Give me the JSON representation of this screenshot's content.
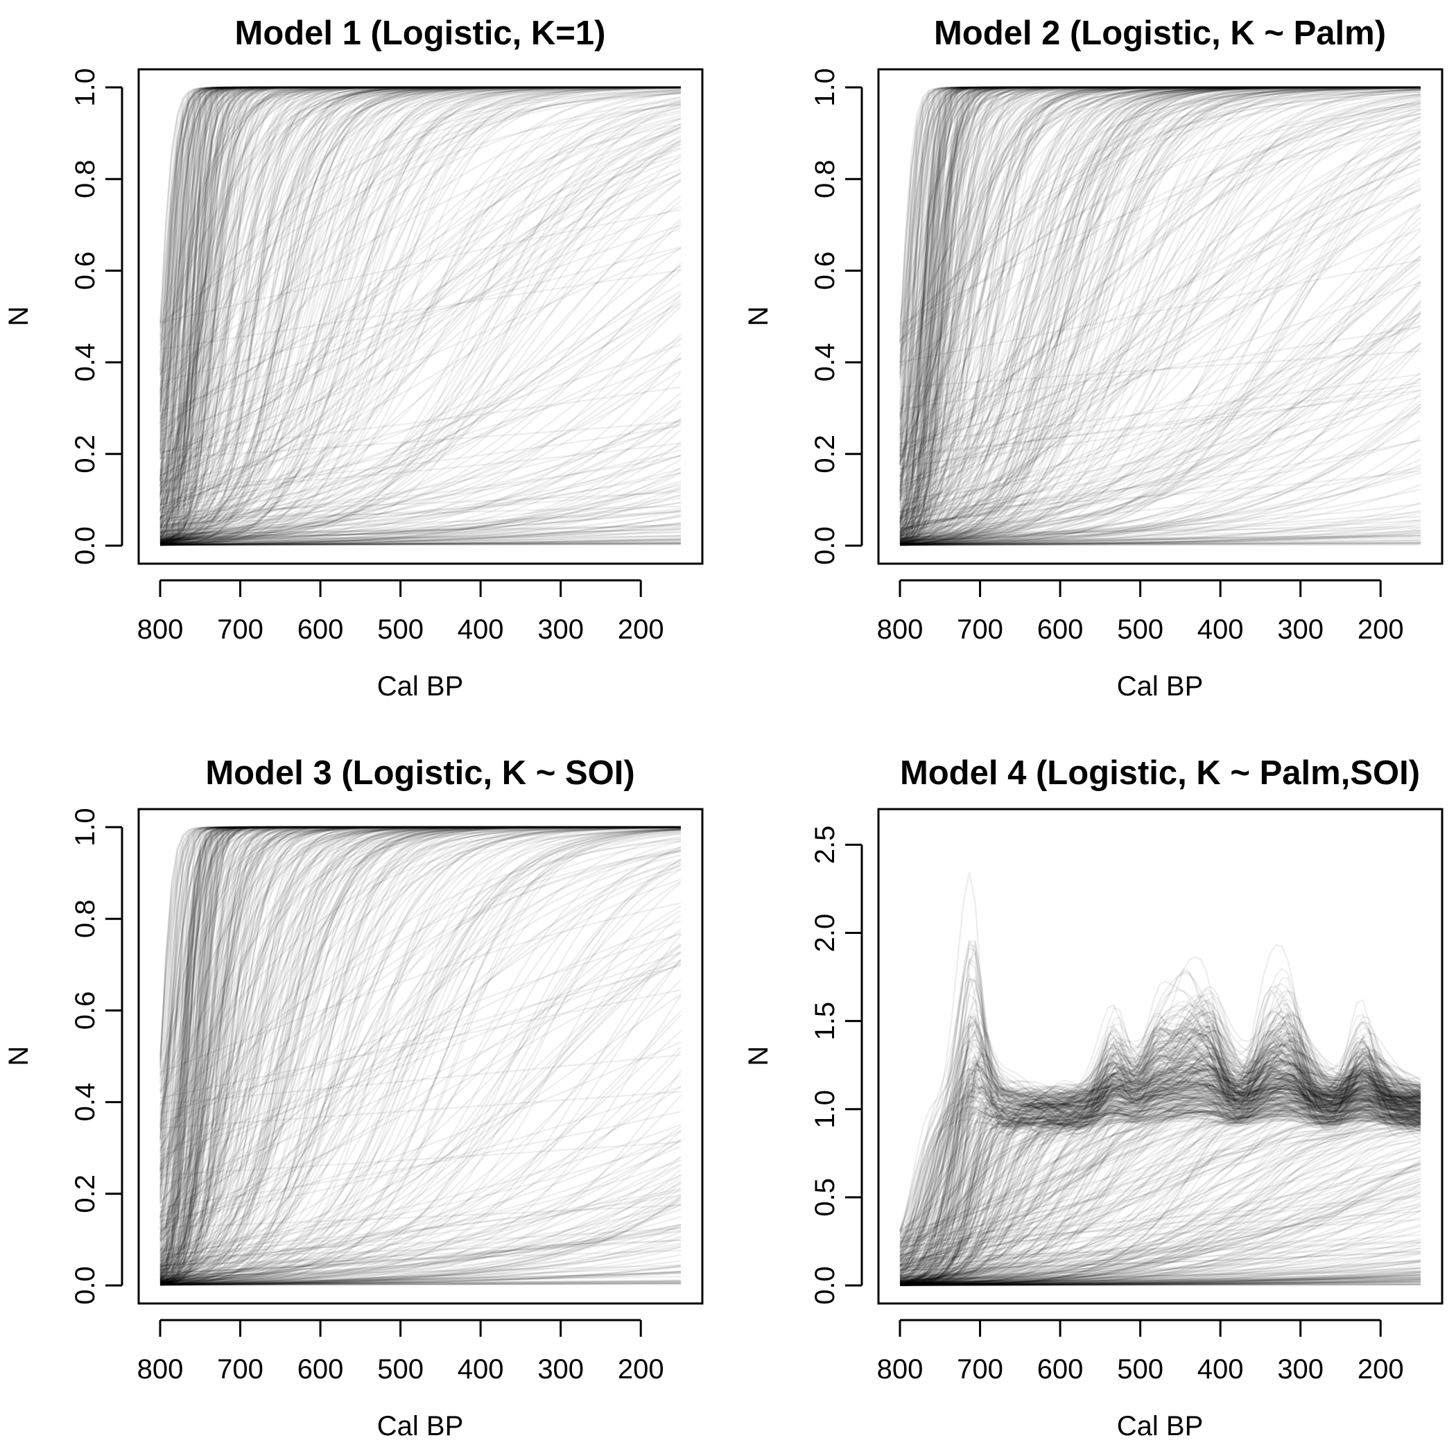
{
  "figure": {
    "background": "#ffffff",
    "line_color": "#000000",
    "line_alpha": 0.07
  },
  "chart_data": [
    {
      "type": "line",
      "title": "Model 1 (Logistic, K=1)",
      "xlabel": "Cal BP",
      "ylabel": "N",
      "xlim": [
        800,
        150
      ],
      "ylim": [
        0,
        1
      ],
      "x_reversed": true,
      "xticks": [
        800,
        700,
        600,
        500,
        400,
        300,
        200
      ],
      "yticks": [
        0.0,
        0.2,
        0.4,
        0.6,
        0.8,
        1.0
      ],
      "ytick_labels": [
        "0.0",
        "0.2",
        "0.4",
        "0.6",
        "0.8",
        "1.0"
      ],
      "grid": false,
      "legend": "none",
      "model": "logistic",
      "n_curves": 500,
      "x_range": [
        800,
        150
      ],
      "curve_summary": "Posterior predictive logistic growth trajectories with carrying capacity fixed at 1; N starts near 0 around 800 Cal BP; most curves saturate at 1.0 by ~700 Cal BP, others rise slowly and end between 0 and 1 at 150 Cal BP"
    },
    {
      "type": "line",
      "title": "Model 2 (Logistic, K ~ Palm)",
      "xlabel": "Cal BP",
      "ylabel": "N",
      "xlim": [
        800,
        150
      ],
      "ylim": [
        0,
        1
      ],
      "x_reversed": true,
      "xticks": [
        800,
        700,
        600,
        500,
        400,
        300,
        200
      ],
      "yticks": [
        0.0,
        0.2,
        0.4,
        0.6,
        0.8,
        1.0
      ],
      "ytick_labels": [
        "0.0",
        "0.2",
        "0.4",
        "0.6",
        "0.8",
        "1.0"
      ],
      "grid": false,
      "legend": "none",
      "model": "logistic",
      "n_curves": 500,
      "x_range": [
        800,
        150
      ],
      "curve_summary": "Posterior predictive logistic trajectories with K modelled by Palm; very similar to Model 1: rapid saturation at 1.0 for most draws, slower rising draws fanning across the panel"
    },
    {
      "type": "line",
      "title": "Model 3 (Logistic, K ~ SOI)",
      "xlabel": "Cal BP",
      "ylabel": "N",
      "xlim": [
        800,
        150
      ],
      "ylim": [
        0,
        1
      ],
      "x_reversed": true,
      "xticks": [
        800,
        700,
        600,
        500,
        400,
        300,
        200
      ],
      "yticks": [
        0.0,
        0.2,
        0.4,
        0.6,
        0.8,
        1.0
      ],
      "ytick_labels": [
        "0.0",
        "0.2",
        "0.4",
        "0.6",
        "0.8",
        "1.0"
      ],
      "grid": false,
      "legend": "none",
      "model": "logistic",
      "n_curves": 500,
      "x_range": [
        800,
        150
      ],
      "curve_summary": "Posterior predictive logistic trajectories with K modelled by SOI; dense band saturating at 1.0 early, fainter slow-growth curves spread between 0 and 1"
    },
    {
      "type": "line",
      "title": "Model 4 (Logistic, K ~ Palm,SOI)",
      "xlabel": "Cal BP",
      "ylabel": "N",
      "xlim": [
        800,
        150
      ],
      "ylim": [
        0,
        2.6
      ],
      "x_reversed": true,
      "xticks": [
        800,
        700,
        600,
        500,
        400,
        300,
        200
      ],
      "yticks": [
        0.0,
        0.5,
        1.0,
        1.5,
        2.0,
        2.5
      ],
      "ytick_labels": [
        "0.0",
        "0.5",
        "1.0",
        "1.5",
        "2.0",
        "2.5"
      ],
      "grid": false,
      "legend": "none",
      "model": "logistic_varying_K",
      "n_curves": 500,
      "x_range": [
        800,
        150
      ],
      "oscillation_peaks_cal_bp": [
        725,
        545,
        490,
        455,
        425,
        355,
        325,
        235
      ],
      "curve_summary": "Posterior predictive trajectories with time-varying K (Palm and SOI); curves rise from ~0 at 800 Cal BP, overshoot up to ~2.6 near 725 Cal BP, then oscillate around ~1.0 with wiggles near 550, 450, 350 and 230 Cal BP; a spread of curves remains below 0.5"
    }
  ]
}
